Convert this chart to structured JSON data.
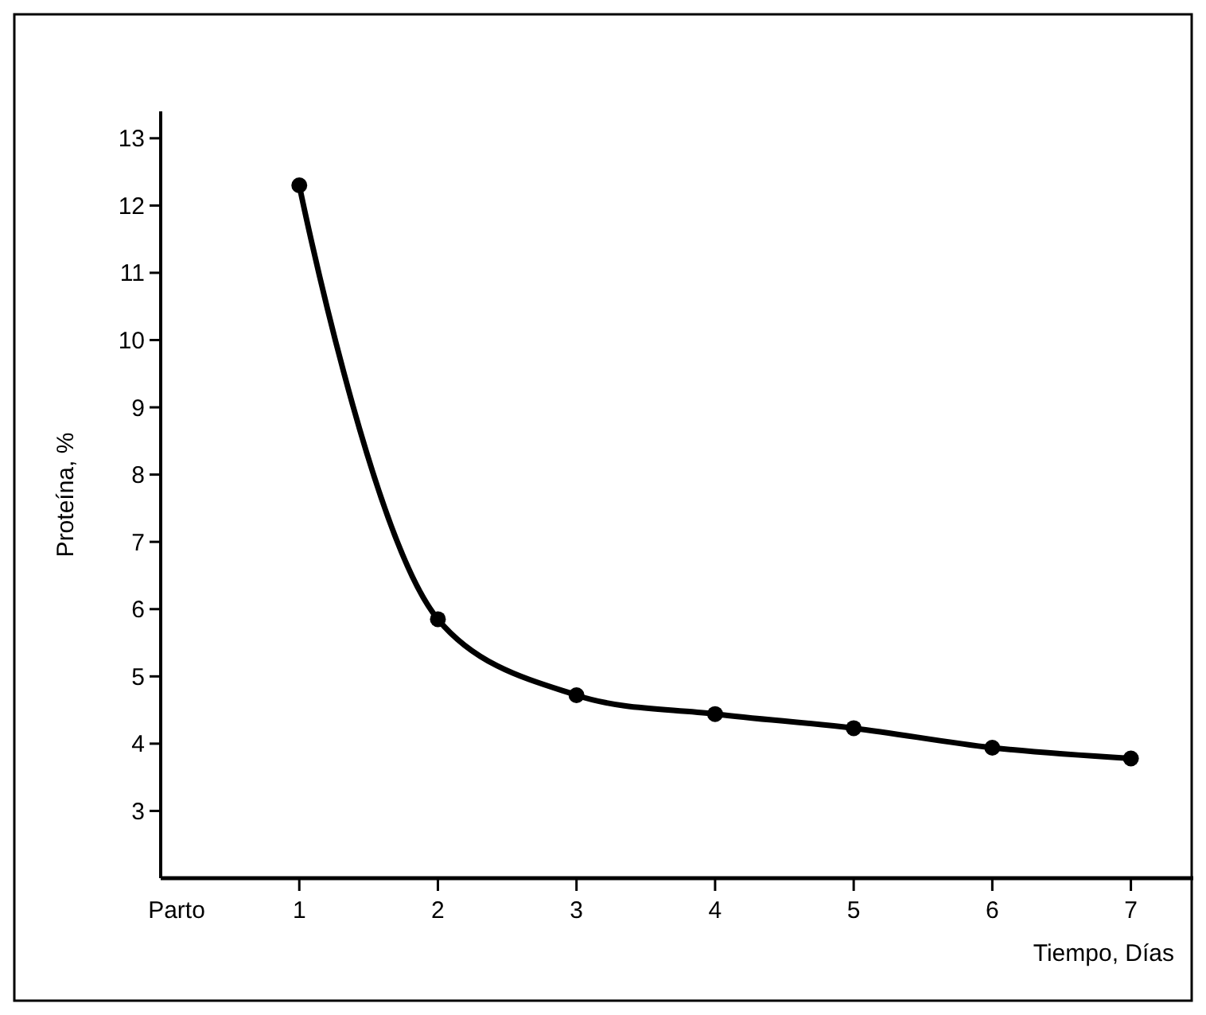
{
  "chart_data": {
    "type": "line",
    "xlabel": "Tiempo, Días",
    "ylabel": "Proteína, %",
    "x": [
      1,
      2,
      3,
      4,
      5,
      6,
      7
    ],
    "series": [
      {
        "color": "#000000",
        "values": [
          12.3,
          5.85,
          4.72,
          4.44,
          4.23,
          3.94,
          3.78
        ]
      }
    ],
    "xlim": [
      0,
      7.45
    ],
    "xticks": [
      {
        "value": 0,
        "label": "Parto"
      },
      1,
      2,
      3,
      4,
      5,
      6,
      7
    ],
    "ylim": [
      2,
      13.4
    ],
    "yticks": [
      3,
      4,
      5,
      6,
      7,
      8,
      9,
      10,
      11,
      12,
      13
    ],
    "marker": "circle",
    "line_style": "solid",
    "grid": false
  }
}
